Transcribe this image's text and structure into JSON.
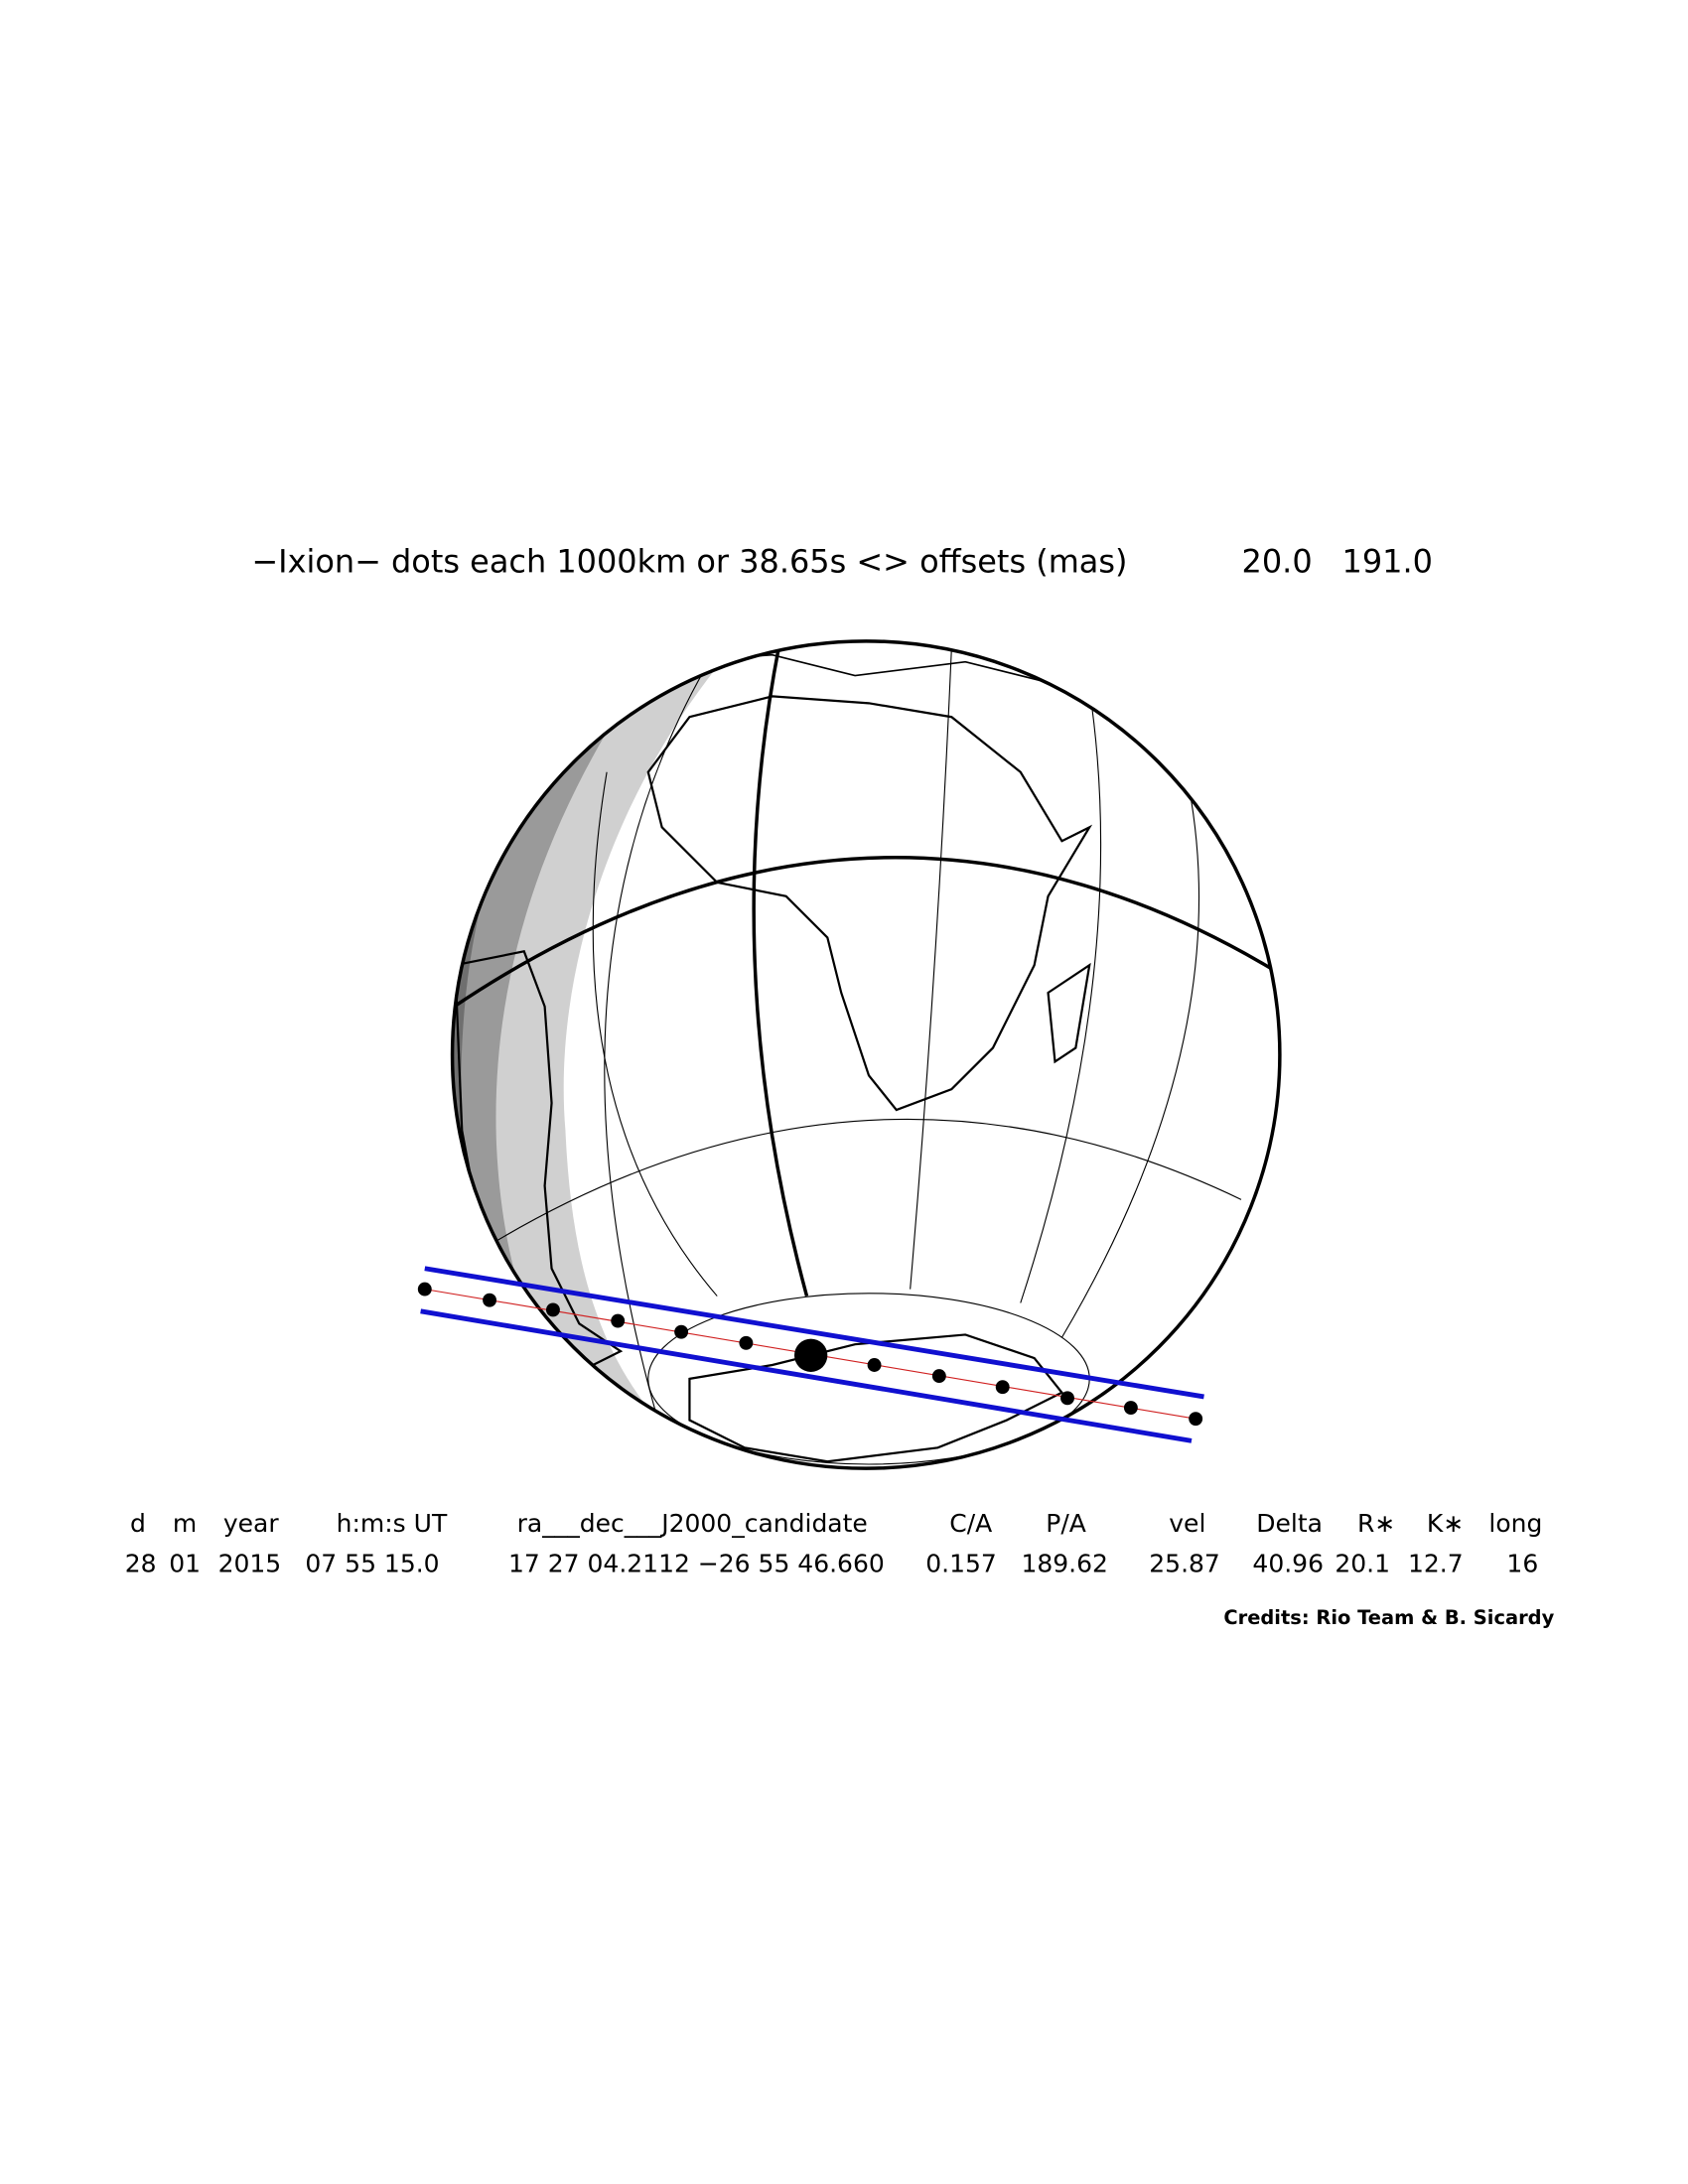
{
  "title": "−Ixion− dots each 1000km or 38.65s <> offsets (mas)",
  "offsets": [
    "20.0",
    "191.0"
  ],
  "table": {
    "header": [
      "d",
      "m",
      "year",
      "h:m:s UT",
      "ra___dec___J2000_candidate",
      "C/A",
      "P/A",
      "vel",
      "Delta",
      "R∗",
      "K∗",
      "long"
    ],
    "row": [
      "28",
      "01",
      "2015",
      "07 55 15.0",
      "17 27 04.2112 −26 55 46.660",
      "0.157",
      "189.62",
      "25.87",
      "40.96",
      "20.1",
      "12.7",
      "16"
    ]
  },
  "credits": "Credits: Rio Team & B. Sicardy"
}
